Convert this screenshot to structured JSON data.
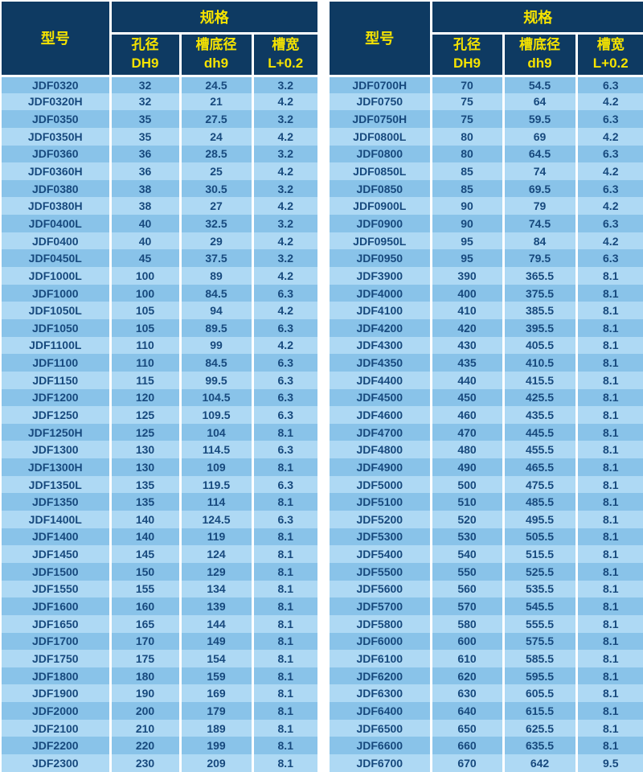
{
  "colors": {
    "header_bg": "#0e3a62",
    "header_text": "#f5e300",
    "row_dark": "#89c3e9",
    "row_light": "#aed9f4",
    "body_text": "#17497d",
    "separator": "#ffffff"
  },
  "header": {
    "model": "型号",
    "spec": "规格",
    "columns": [
      {
        "label": "孔径",
        "sub": "DH9"
      },
      {
        "label": "槽底径",
        "sub": "dh9"
      },
      {
        "label": "槽宽",
        "sub": "L+0.2"
      }
    ]
  },
  "tables": [
    {
      "rows": [
        [
          "JDF0320",
          "32",
          "24.5",
          "3.2"
        ],
        [
          "JDF0320H",
          "32",
          "21",
          "4.2"
        ],
        [
          "JDF0350",
          "35",
          "27.5",
          "3.2"
        ],
        [
          "JDF0350H",
          "35",
          "24",
          "4.2"
        ],
        [
          "JDF0360",
          "36",
          "28.5",
          "3.2"
        ],
        [
          "JDF0360H",
          "36",
          "25",
          "4.2"
        ],
        [
          "JDF0380",
          "38",
          "30.5",
          "3.2"
        ],
        [
          "JDF0380H",
          "38",
          "27",
          "4.2"
        ],
        [
          "JDF0400L",
          "40",
          "32.5",
          "3.2"
        ],
        [
          "JDF0400",
          "40",
          "29",
          "4.2"
        ],
        [
          "JDF0450L",
          "45",
          "37.5",
          "3.2"
        ],
        [
          "JDF1000L",
          "100",
          "89",
          "4.2"
        ],
        [
          "JDF1000",
          "100",
          "84.5",
          "6.3"
        ],
        [
          "JDF1050L",
          "105",
          "94",
          "4.2"
        ],
        [
          "JDF1050",
          "105",
          "89.5",
          "6.3"
        ],
        [
          "JDF1100L",
          "110",
          "99",
          "4.2"
        ],
        [
          "JDF1100",
          "110",
          "84.5",
          "6.3"
        ],
        [
          "JDF1150",
          "115",
          "99.5",
          "6.3"
        ],
        [
          "JDF1200",
          "120",
          "104.5",
          "6.3"
        ],
        [
          "JDF1250",
          "125",
          "109.5",
          "6.3"
        ],
        [
          "JDF1250H",
          "125",
          "104",
          "8.1"
        ],
        [
          "JDF1300",
          "130",
          "114.5",
          "6.3"
        ],
        [
          "JDF1300H",
          "130",
          "109",
          "8.1"
        ],
        [
          "JDF1350L",
          "135",
          "119.5",
          "6.3"
        ],
        [
          "JDF1350",
          "135",
          "114",
          "8.1"
        ],
        [
          "JDF1400L",
          "140",
          "124.5",
          "6.3"
        ],
        [
          "JDF1400",
          "140",
          "119",
          "8.1"
        ],
        [
          "JDF1450",
          "145",
          "124",
          "8.1"
        ],
        [
          "JDF1500",
          "150",
          "129",
          "8.1"
        ],
        [
          "JDF1550",
          "155",
          "134",
          "8.1"
        ],
        [
          "JDF1600",
          "160",
          "139",
          "8.1"
        ],
        [
          "JDF1650",
          "165",
          "144",
          "8.1"
        ],
        [
          "JDF1700",
          "170",
          "149",
          "8.1"
        ],
        [
          "JDF1750",
          "175",
          "154",
          "8.1"
        ],
        [
          "JDF1800",
          "180",
          "159",
          "8.1"
        ],
        [
          "JDF1900",
          "190",
          "169",
          "8.1"
        ],
        [
          "JDF2000",
          "200",
          "179",
          "8.1"
        ],
        [
          "JDF2100",
          "210",
          "189",
          "8.1"
        ],
        [
          "JDF2200",
          "220",
          "199",
          "8.1"
        ],
        [
          "JDF2300",
          "230",
          "209",
          "8.1"
        ]
      ]
    },
    {
      "rows": [
        [
          "JDF0700H",
          "70",
          "54.5",
          "6.3"
        ],
        [
          "JDF0750",
          "75",
          "64",
          "4.2"
        ],
        [
          "JDF0750H",
          "75",
          "59.5",
          "6.3"
        ],
        [
          "JDF0800L",
          "80",
          "69",
          "4.2"
        ],
        [
          "JDF0800",
          "80",
          "64.5",
          "6.3"
        ],
        [
          "JDF0850L",
          "85",
          "74",
          "4.2"
        ],
        [
          "JDF0850",
          "85",
          "69.5",
          "6.3"
        ],
        [
          "JDF0900L",
          "90",
          "79",
          "4.2"
        ],
        [
          "JDF0900",
          "90",
          "74.5",
          "6.3"
        ],
        [
          "JDF0950L",
          "95",
          "84",
          "4.2"
        ],
        [
          "JDF0950",
          "95",
          "79.5",
          "6.3"
        ],
        [
          "JDF3900",
          "390",
          "365.5",
          "8.1"
        ],
        [
          "JDF4000",
          "400",
          "375.5",
          "8.1"
        ],
        [
          "JDF4100",
          "410",
          "385.5",
          "8.1"
        ],
        [
          "JDF4200",
          "420",
          "395.5",
          "8.1"
        ],
        [
          "JDF4300",
          "430",
          "405.5",
          "8.1"
        ],
        [
          "JDF4350",
          "435",
          "410.5",
          "8.1"
        ],
        [
          "JDF4400",
          "440",
          "415.5",
          "8.1"
        ],
        [
          "JDF4500",
          "450",
          "425.5",
          "8.1"
        ],
        [
          "JDF4600",
          "460",
          "435.5",
          "8.1"
        ],
        [
          "JDF4700",
          "470",
          "445.5",
          "8.1"
        ],
        [
          "JDF4800",
          "480",
          "455.5",
          "8.1"
        ],
        [
          "JDF4900",
          "490",
          "465.5",
          "8.1"
        ],
        [
          "JDF5000",
          "500",
          "475.5",
          "8.1"
        ],
        [
          "JDF5100",
          "510",
          "485.5",
          "8.1"
        ],
        [
          "JDF5200",
          "520",
          "495.5",
          "8.1"
        ],
        [
          "JDF5300",
          "530",
          "505.5",
          "8.1"
        ],
        [
          "JDF5400",
          "540",
          "515.5",
          "8.1"
        ],
        [
          "JDF5500",
          "550",
          "525.5",
          "8.1"
        ],
        [
          "JDF5600",
          "560",
          "535.5",
          "8.1"
        ],
        [
          "JDF5700",
          "570",
          "545.5",
          "8.1"
        ],
        [
          "JDF5800",
          "580",
          "555.5",
          "8.1"
        ],
        [
          "JDF6000",
          "600",
          "575.5",
          "8.1"
        ],
        [
          "JDF6100",
          "610",
          "585.5",
          "8.1"
        ],
        [
          "JDF6200",
          "620",
          "595.5",
          "8.1"
        ],
        [
          "JDF6300",
          "630",
          "605.5",
          "8.1"
        ],
        [
          "JDF6400",
          "640",
          "615.5",
          "8.1"
        ],
        [
          "JDF6500",
          "650",
          "625.5",
          "8.1"
        ],
        [
          "JDF6600",
          "660",
          "635.5",
          "8.1"
        ],
        [
          "JDF6700",
          "670",
          "642",
          "9.5"
        ]
      ]
    }
  ]
}
